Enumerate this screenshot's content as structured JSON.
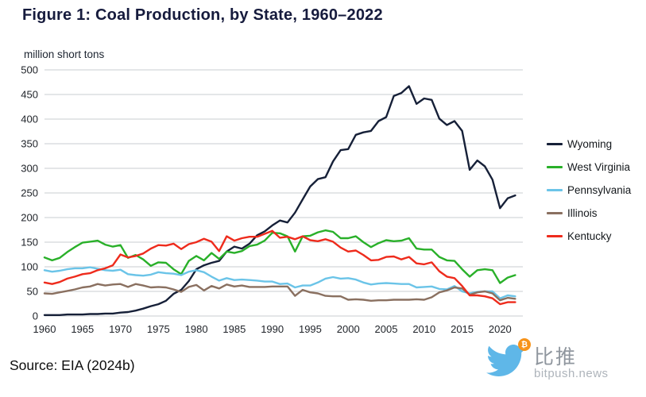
{
  "title": "Figure 1: Coal Production, by State, 1960–2022",
  "y_axis_label": "million short tons",
  "source": "Source: EIA (2024b)",
  "watermark": {
    "brand": "比推",
    "domain": "bitpush.news",
    "badge_symbol": "₿",
    "bird_color": "#5fb7e8",
    "badge_color": "#f7931a"
  },
  "chart_data": {
    "type": "line",
    "title": "Figure 1: Coal Production, by State, 1960–2022",
    "xlabel": "",
    "ylabel": "million short tons",
    "xlim": [
      1960,
      2023
    ],
    "ylim": [
      0,
      500
    ],
    "grid": "horizontal",
    "legend_position": "right",
    "y_ticks": [
      0,
      50,
      100,
      150,
      200,
      250,
      300,
      350,
      400,
      450,
      500
    ],
    "x_ticks": [
      1960,
      1965,
      1970,
      1975,
      1980,
      1985,
      1990,
      1995,
      2000,
      2005,
      2010,
      2015,
      2020
    ],
    "x": [
      1960,
      1961,
      1962,
      1963,
      1964,
      1965,
      1966,
      1967,
      1968,
      1969,
      1970,
      1971,
      1972,
      1973,
      1974,
      1975,
      1976,
      1977,
      1978,
      1979,
      1980,
      1981,
      1982,
      1983,
      1984,
      1985,
      1986,
      1987,
      1988,
      1989,
      1990,
      1991,
      1992,
      1993,
      1994,
      1995,
      1996,
      1997,
      1998,
      1999,
      2000,
      2001,
      2002,
      2003,
      2004,
      2005,
      2006,
      2007,
      2008,
      2009,
      2010,
      2011,
      2012,
      2013,
      2014,
      2015,
      2016,
      2017,
      2018,
      2019,
      2020,
      2021,
      2022
    ],
    "series": [
      {
        "name": "Wyoming",
        "color": "#162038",
        "values": [
          2,
          2,
          2,
          3,
          3,
          3,
          4,
          4,
          5,
          5,
          7,
          8,
          11,
          15,
          20,
          24,
          31,
          45,
          53,
          71,
          95,
          103,
          108,
          112,
          131,
          141,
          137,
          147,
          164,
          172,
          184,
          194,
          190,
          210,
          237,
          263,
          278,
          282,
          314,
          337,
          339,
          368,
          373,
          376,
          396,
          404,
          447,
          453,
          467,
          431,
          442,
          439,
          401,
          388,
          396,
          376,
          297,
          316,
          304,
          277,
          219,
          239,
          245
        ]
      },
      {
        "name": "West Virginia",
        "color": "#29b029",
        "values": [
          119,
          113,
          118,
          130,
          140,
          149,
          151,
          153,
          145,
          141,
          144,
          118,
          124,
          115,
          102,
          109,
          108,
          95,
          85,
          112,
          122,
          113,
          128,
          116,
          131,
          128,
          132,
          142,
          145,
          153,
          169,
          168,
          162,
          131,
          162,
          163,
          170,
          174,
          171,
          158,
          158,
          162,
          150,
          140,
          148,
          154,
          152,
          153,
          158,
          137,
          135,
          135,
          120,
          113,
          112,
          95,
          80,
          93,
          95,
          93,
          67,
          78,
          83
        ]
      },
      {
        "name": "Pennsylvania",
        "color": "#6bc4e8",
        "values": [
          93,
          90,
          92,
          95,
          97,
          97,
          99,
          96,
          93,
          92,
          94,
          85,
          83,
          82,
          84,
          89,
          87,
          86,
          83,
          90,
          93,
          89,
          80,
          72,
          77,
          73,
          74,
          73,
          72,
          70,
          70,
          65,
          66,
          58,
          62,
          62,
          68,
          76,
          79,
          76,
          77,
          74,
          68,
          64,
          66,
          67,
          66,
          65,
          65,
          58,
          59,
          60,
          55,
          54,
          61,
          50,
          46,
          49,
          50,
          50,
          36,
          42,
          40
        ]
      },
      {
        "name": "Illinois",
        "color": "#8a7060",
        "values": [
          46,
          45,
          48,
          51,
          54,
          58,
          60,
          65,
          62,
          64,
          65,
          59,
          65,
          62,
          58,
          59,
          58,
          54,
          49,
          59,
          63,
          52,
          61,
          56,
          64,
          60,
          62,
          59,
          59,
          59,
          60,
          60,
          60,
          41,
          53,
          48,
          46,
          41,
          40,
          40,
          33,
          34,
          33,
          31,
          32,
          32,
          33,
          33,
          33,
          34,
          33,
          38,
          48,
          52,
          58,
          56,
          43,
          48,
          50,
          46,
          32,
          37,
          35
        ]
      },
      {
        "name": "Kentucky",
        "color": "#ee2b1c",
        "values": [
          68,
          65,
          69,
          76,
          80,
          85,
          87,
          93,
          97,
          103,
          125,
          119,
          122,
          127,
          137,
          144,
          143,
          147,
          136,
          146,
          150,
          157,
          151,
          132,
          162,
          153,
          158,
          161,
          161,
          167,
          173,
          159,
          161,
          156,
          162,
          154,
          152,
          156,
          151,
          139,
          131,
          133,
          124,
          113,
          114,
          120,
          121,
          115,
          120,
          107,
          105,
          109,
          91,
          80,
          77,
          61,
          42,
          42,
          40,
          36,
          24,
          28,
          28
        ]
      }
    ]
  }
}
